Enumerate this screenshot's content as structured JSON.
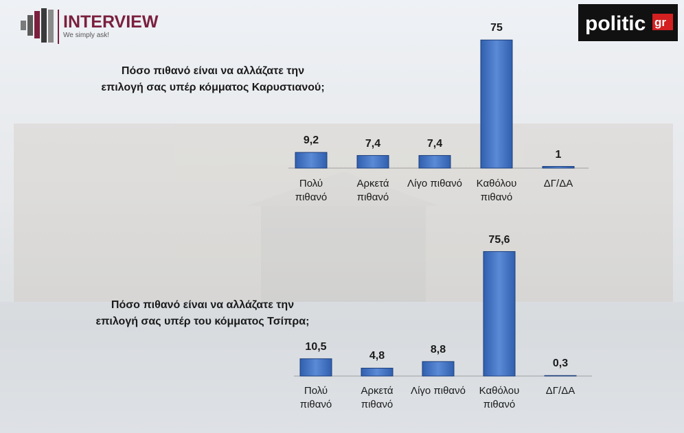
{
  "branding": {
    "interview": "INTERVIEW",
    "tagline": "We simply ask!",
    "politic": "politic",
    "gr": "gr"
  },
  "chart_data": [
    {
      "type": "bar",
      "title": "Πόσο πιθανό είναι να αλλάζατε την επιλογή σας υπέρ κόμματος Καρυστιανού;",
      "categories": [
        "Πολύ πιθανό",
        "Αρκετά πιθανό",
        "Λίγο πιθανό",
        "Καθόλου πιθανό",
        "ΔΓ/ΔΑ"
      ],
      "values": [
        9.2,
        7.4,
        7.4,
        75,
        1
      ],
      "value_labels": [
        "9,2",
        "7,4",
        "7,4",
        "75",
        "1"
      ],
      "color": "#4a7cc9"
    },
    {
      "type": "bar",
      "title": "Πόσο πιθανό είναι να αλλάζατε την επιλογή σας υπέρ του κόμματος Τσίπρα;",
      "categories": [
        "Πολύ πιθανό",
        "Αρκετά πιθανό",
        "Λίγο πιθανό",
        "Καθόλου πιθανό",
        "ΔΓ/ΔΑ"
      ],
      "values": [
        10.5,
        4.8,
        8.8,
        75.6,
        0.3
      ],
      "value_labels": [
        "10,5",
        "4,8",
        "8,8",
        "75,6",
        "0,3"
      ],
      "color": "#4a7cc9"
    }
  ]
}
